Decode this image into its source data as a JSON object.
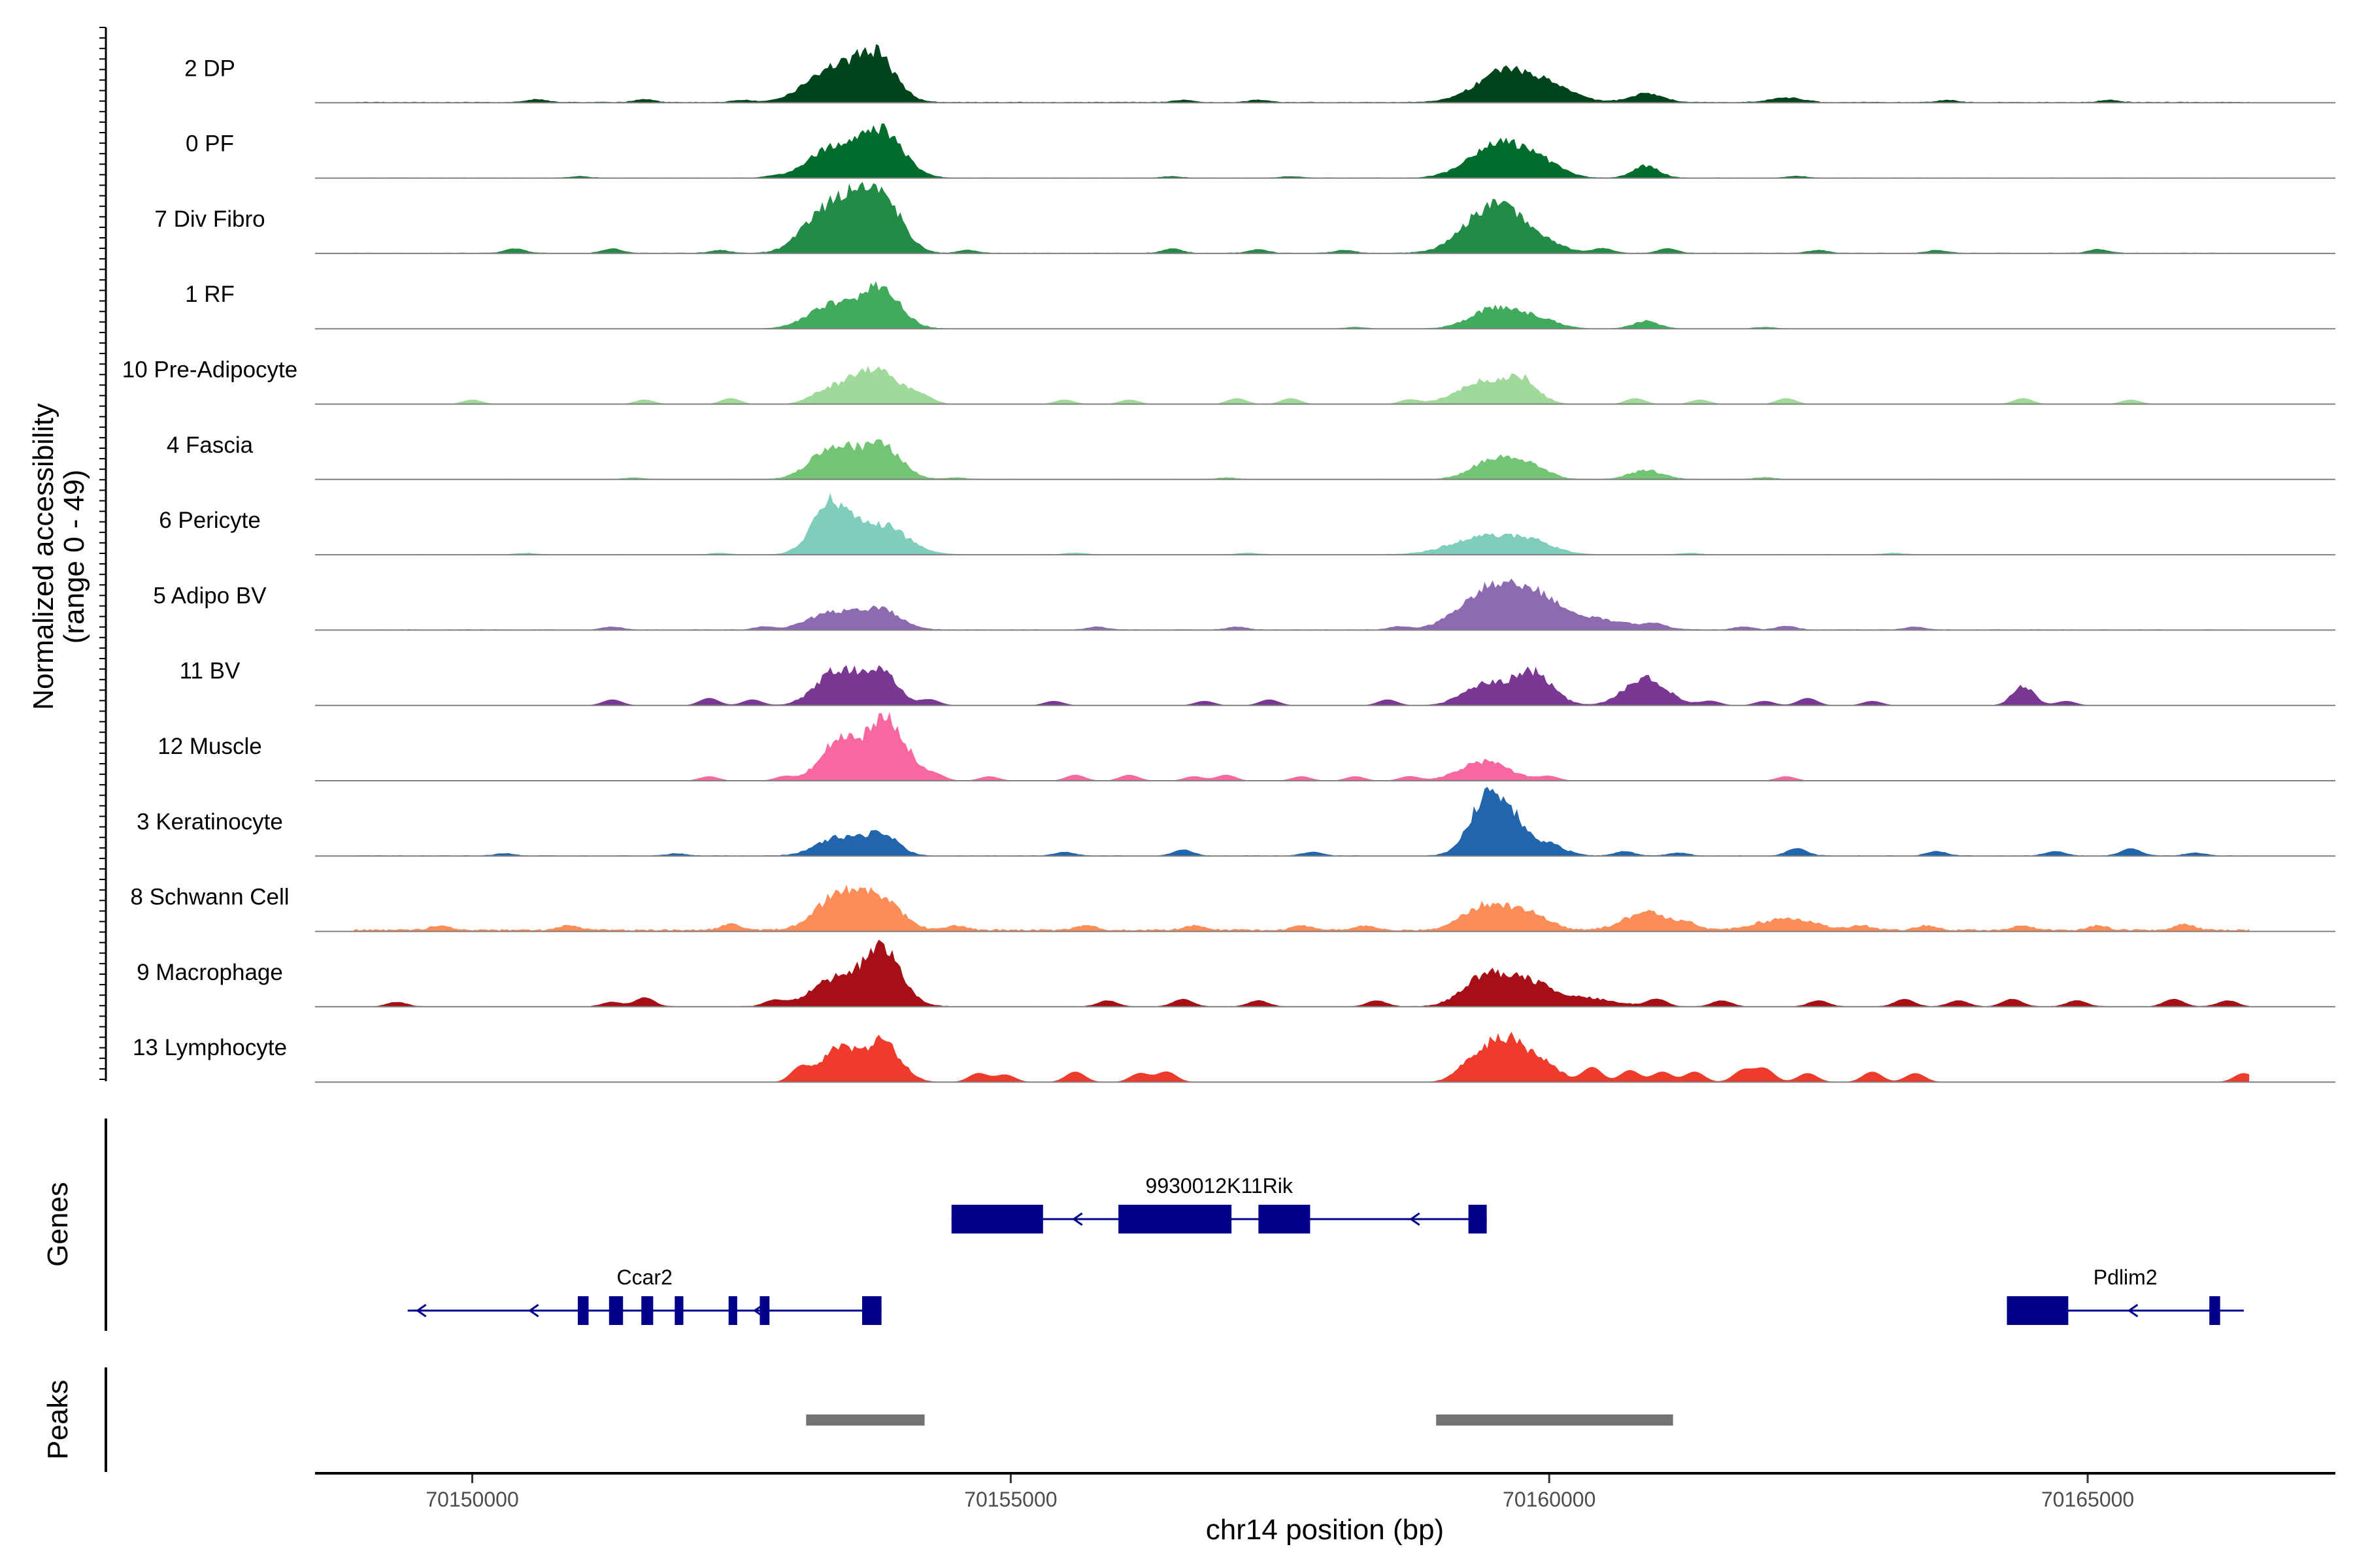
{
  "chart_data": {
    "type": "area",
    "title": "",
    "ylabel_line1": "Normalized accessibility",
    "ylabel_line2": "(range 0 - 49)",
    "xlabel": "chr14 position (bp)",
    "xlim": [
      70148540,
      70167300
    ],
    "ylim": [
      0,
      49
    ],
    "x_ticks": [
      {
        "value": 70150000,
        "label": "70150000"
      },
      {
        "value": 70155000,
        "label": "70155000"
      },
      {
        "value": 70160000,
        "label": "70160000"
      },
      {
        "value": 70165000,
        "label": "70165000"
      }
    ],
    "genes_label": "Genes",
    "peaks_label": "Peaks",
    "series": [
      {
        "name": "2 DP",
        "color": "#00441b",
        "baseline": 0.5,
        "range": [
          70148900,
          70166500
        ],
        "peaks": [
          [
            70153350,
            250,
            22
          ],
          [
            70153750,
            180,
            28
          ],
          [
            70159550,
            250,
            18
          ],
          [
            70159950,
            250,
            11
          ],
          [
            70160900,
            150,
            6
          ],
          [
            70162200,
            150,
            3
          ]
        ],
        "bumps": [
          [
            70150600,
            2
          ],
          [
            70151600,
            2
          ],
          [
            70152500,
            1.5
          ],
          [
            70156600,
            1.5
          ],
          [
            70157300,
            1.5
          ],
          [
            70163700,
            1.5
          ],
          [
            70165200,
            1.5
          ]
        ]
      },
      {
        "name": "0 PF",
        "color": "#006d2c",
        "baseline": 0.3,
        "range": [
          70148900,
          70166500
        ],
        "peaks": [
          [
            70153350,
            220,
            20
          ],
          [
            70153800,
            200,
            30
          ],
          [
            70159500,
            250,
            22
          ],
          [
            70159900,
            200,
            10
          ],
          [
            70160900,
            120,
            8
          ]
        ],
        "bumps": [
          [
            70151000,
            1
          ],
          [
            70152800,
            1
          ],
          [
            70156500,
            1
          ],
          [
            70157600,
            1
          ],
          [
            70162300,
            1.2
          ]
        ]
      },
      {
        "name": "7 Div Fibro",
        "color": "#238b45",
        "baseline": 0.4,
        "range": [
          70148900,
          70166500
        ],
        "peaks": [
          [
            70153250,
            200,
            25
          ],
          [
            70153500,
            150,
            20
          ],
          [
            70153800,
            180,
            38
          ],
          [
            70159450,
            250,
            28
          ],
          [
            70159800,
            250,
            10
          ]
        ],
        "bumps": [
          [
            70150400,
            3
          ],
          [
            70151300,
            3
          ],
          [
            70152300,
            2
          ],
          [
            70154600,
            2
          ],
          [
            70156500,
            3
          ],
          [
            70157300,
            2.5
          ],
          [
            70158100,
            2
          ],
          [
            70160500,
            3
          ],
          [
            70161100,
            3
          ],
          [
            70162500,
            2
          ],
          [
            70163600,
            2
          ],
          [
            70165100,
            2.5
          ]
        ]
      },
      {
        "name": "1 RF",
        "color": "#41ab5d",
        "baseline": 0.2,
        "range": [
          70148900,
          70166500
        ],
        "peaks": [
          [
            70153350,
            220,
            16
          ],
          [
            70153800,
            180,
            26
          ],
          [
            70159500,
            220,
            14
          ],
          [
            70159900,
            180,
            6
          ],
          [
            70160900,
            120,
            5
          ]
        ],
        "bumps": [
          [
            70158200,
            1
          ],
          [
            70162000,
            1
          ]
        ]
      },
      {
        "name": "10 Pre-Adipocyte",
        "color": "#a1d99b",
        "baseline": 0,
        "range": [
          70148900,
          70166500
        ],
        "peaks": [
          [
            70153300,
            150,
            10
          ],
          [
            70153600,
            120,
            8
          ],
          [
            70153800,
            220,
            20
          ],
          [
            70159400,
            250,
            15
          ],
          [
            70159750,
            150,
            13
          ]
        ],
        "bumps": [
          [
            70150000,
            3
          ],
          [
            70151600,
            3
          ],
          [
            70152400,
            4
          ],
          [
            70154200,
            3
          ],
          [
            70155500,
            3
          ],
          [
            70156100,
            3
          ],
          [
            70157100,
            4
          ],
          [
            70157600,
            4
          ],
          [
            70158700,
            3
          ],
          [
            70160800,
            4
          ],
          [
            70161400,
            3
          ],
          [
            70162200,
            4
          ],
          [
            70164400,
            4
          ],
          [
            70165400,
            3
          ]
        ]
      },
      {
        "name": "4 Fascia",
        "color": "#74c476",
        "baseline": 0.3,
        "range": [
          70148900,
          70166500
        ],
        "peaks": [
          [
            70153350,
            200,
            22
          ],
          [
            70153800,
            180,
            22
          ],
          [
            70159500,
            200,
            14
          ],
          [
            70159850,
            150,
            8
          ],
          [
            70160900,
            150,
            6
          ]
        ],
        "bumps": [
          [
            70151500,
            1
          ],
          [
            70154500,
            1
          ],
          [
            70157000,
            1
          ],
          [
            70162000,
            1.2
          ]
        ]
      },
      {
        "name": "6 Pericyte",
        "color": "#7fcdbb",
        "baseline": 0.3,
        "range": [
          70148900,
          70166500
        ],
        "peaks": [
          [
            70153330,
            170,
            34
          ],
          [
            70153800,
            230,
            20
          ],
          [
            70159400,
            300,
            12
          ],
          [
            70159850,
            200,
            7
          ]
        ],
        "bumps": [
          [
            70150500,
            1
          ],
          [
            70152300,
            1
          ],
          [
            70155600,
            1
          ],
          [
            70157200,
            1
          ],
          [
            70161300,
            1
          ],
          [
            70163200,
            1
          ]
        ]
      },
      {
        "name": "5 Adipo BV",
        "color": "#8c6bb1",
        "baseline": 0.4,
        "range": [
          70148900,
          70166500
        ],
        "peaks": [
          [
            70153350,
            220,
            12
          ],
          [
            70153800,
            180,
            13
          ],
          [
            70159450,
            270,
            27
          ],
          [
            70159900,
            250,
            18
          ],
          [
            70160500,
            300,
            6
          ]
        ],
        "bumps": [
          [
            70151300,
            2
          ],
          [
            70152700,
            2
          ],
          [
            70155800,
            2
          ],
          [
            70157100,
            2
          ],
          [
            70158600,
            2
          ],
          [
            70161000,
            3
          ],
          [
            70161800,
            2
          ],
          [
            70162200,
            2.5
          ],
          [
            70163400,
            2
          ]
        ]
      },
      {
        "name": "11 BV",
        "color": "#7a3793",
        "baseline": 0,
        "range": [
          70148900,
          70166500
        ],
        "peaks": [
          [
            70153400,
            200,
            24
          ],
          [
            70153800,
            150,
            22
          ],
          [
            70159400,
            200,
            14
          ],
          [
            70159850,
            180,
            22
          ],
          [
            70160900,
            200,
            18
          ],
          [
            70164400,
            100,
            13
          ]
        ],
        "bumps": [
          [
            70151300,
            4
          ],
          [
            70152200,
            5
          ],
          [
            70152600,
            4
          ],
          [
            70154250,
            4
          ],
          [
            70155400,
            3
          ],
          [
            70156800,
            3
          ],
          [
            70157400,
            4
          ],
          [
            70158500,
            4
          ],
          [
            70161500,
            3
          ],
          [
            70162000,
            3
          ],
          [
            70162400,
            5
          ],
          [
            70163000,
            3
          ],
          [
            70164800,
            3
          ]
        ]
      },
      {
        "name": "12 Muscle",
        "color": "#f768a1",
        "baseline": 0,
        "range": [
          70148900,
          70166500
        ],
        "peaks": [
          [
            70153400,
            170,
            26
          ],
          [
            70153850,
            180,
            42
          ],
          [
            70159400,
            230,
            13
          ]
        ],
        "bumps": [
          [
            70152200,
            3
          ],
          [
            70152900,
            3
          ],
          [
            70154300,
            4
          ],
          [
            70154800,
            3
          ],
          [
            70155600,
            4
          ],
          [
            70156100,
            4
          ],
          [
            70156700,
            3
          ],
          [
            70157000,
            4
          ],
          [
            70157700,
            3
          ],
          [
            70158200,
            3
          ],
          [
            70158700,
            3
          ],
          [
            70160000,
            3
          ],
          [
            70162200,
            3
          ]
        ]
      },
      {
        "name": "3 Keratinocyte",
        "color": "#2166ac",
        "baseline": 0.4,
        "range": [
          70148900,
          70166500
        ],
        "peaks": [
          [
            70153400,
            200,
            12
          ],
          [
            70153800,
            150,
            14
          ],
          [
            70159350,
            150,
            16
          ],
          [
            70159550,
            180,
            36
          ],
          [
            70160000,
            150,
            7
          ]
        ],
        "bumps": [
          [
            70150300,
            1.5
          ],
          [
            70151900,
            1.5
          ],
          [
            70155500,
            2.5
          ],
          [
            70156600,
            4
          ],
          [
            70157800,
            2.5
          ],
          [
            70160700,
            3
          ],
          [
            70161200,
            2
          ],
          [
            70162300,
            5
          ],
          [
            70163600,
            3
          ],
          [
            70164700,
            3
          ],
          [
            70165400,
            5
          ],
          [
            70166000,
            2
          ]
        ]
      },
      {
        "name": "8 Schwann Cell",
        "color": "#fc8d59",
        "baseline": 1.2,
        "range": [
          70148900,
          70166500
        ],
        "peaks": [
          [
            70153400,
            200,
            24
          ],
          [
            70153800,
            180,
            20
          ],
          [
            70159400,
            200,
            16
          ],
          [
            70159800,
            180,
            12
          ],
          [
            70160900,
            200,
            12
          ],
          [
            70162200,
            250,
            8
          ]
        ],
        "bumps": [
          [
            70149700,
            3
          ],
          [
            70150900,
            3
          ],
          [
            70152400,
            4
          ],
          [
            70154500,
            3
          ],
          [
            70155700,
            3
          ],
          [
            70156700,
            3
          ],
          [
            70157700,
            3
          ],
          [
            70158300,
            3
          ],
          [
            70161300,
            4
          ],
          [
            70162900,
            3
          ],
          [
            70163500,
            3
          ],
          [
            70164400,
            3
          ],
          [
            70165100,
            3
          ],
          [
            70165900,
            4
          ]
        ]
      },
      {
        "name": "9 Macrophage",
        "color": "#a50f15",
        "baseline": 0.3,
        "range": [
          70148900,
          70166500
        ],
        "peaks": [
          [
            70153300,
            200,
            13
          ],
          [
            70153700,
            230,
            20
          ],
          [
            70153850,
            150,
            22
          ],
          [
            70159400,
            200,
            20
          ],
          [
            70159800,
            200,
            15
          ],
          [
            70160300,
            280,
            6
          ]
        ],
        "bumps": [
          [
            70149300,
            3
          ],
          [
            70151300,
            3
          ],
          [
            70151600,
            6
          ],
          [
            70152800,
            4
          ],
          [
            70155900,
            4
          ],
          [
            70156600,
            5
          ],
          [
            70157300,
            4
          ],
          [
            70158400,
            4
          ],
          [
            70161000,
            5
          ],
          [
            70161600,
            4
          ],
          [
            70162500,
            4
          ],
          [
            70163300,
            5
          ],
          [
            70163800,
            4
          ],
          [
            70164300,
            5
          ],
          [
            70164900,
            4
          ],
          [
            70165800,
            5
          ],
          [
            70166300,
            4
          ]
        ]
      },
      {
        "name": "13 Lymphocyte",
        "color": "#ee3b2b",
        "baseline": 0,
        "range": [
          70148900,
          70166500
        ],
        "peaks": [
          [
            70153400,
            150,
            22
          ],
          [
            70153800,
            170,
            27
          ],
          [
            70159300,
            150,
            12
          ],
          [
            70159600,
            180,
            28
          ],
          [
            70159950,
            150,
            12
          ]
        ],
        "bumps": [
          [
            70153050,
            10
          ],
          [
            70154700,
            6
          ],
          [
            70154950,
            5
          ],
          [
            70155600,
            7
          ],
          [
            70156200,
            6
          ],
          [
            70156450,
            7
          ],
          [
            70160400,
            10
          ],
          [
            70160750,
            8
          ],
          [
            70161050,
            7
          ],
          [
            70161350,
            7
          ],
          [
            70161800,
            8
          ],
          [
            70162000,
            9
          ],
          [
            70162400,
            6
          ],
          [
            70163000,
            7
          ],
          [
            70163400,
            6
          ],
          [
            70166450,
            6
          ]
        ]
      }
    ],
    "genes": [
      {
        "name": "9930012K11Rik",
        "row": 1,
        "start": 70154450,
        "end": 70159420,
        "strand": "-",
        "exons": [
          [
            70154450,
            70155300
          ],
          [
            70156000,
            70157050
          ],
          [
            70157300,
            70157780
          ],
          [
            70159250,
            70159420
          ]
        ]
      },
      {
        "name": "Ccar2",
        "row": 2,
        "start": 70149400,
        "end": 70153800,
        "strand": "-",
        "exons": [
          [
            70150980,
            70151080
          ],
          [
            70151270,
            70151400
          ],
          [
            70151570,
            70151680
          ],
          [
            70151880,
            70151960
          ],
          [
            70152380,
            70152460
          ],
          [
            70152670,
            70152760
          ],
          [
            70153620,
            70153800
          ]
        ]
      },
      {
        "name": "Pdlim2",
        "row": 2,
        "start": 70164250,
        "end": 70166450,
        "strand": "-",
        "exons": [
          [
            70164250,
            70164820
          ],
          [
            70166130,
            70166230
          ]
        ]
      }
    ],
    "peaks_regions": [
      [
        70153100,
        70154200
      ],
      [
        70158950,
        70161150
      ]
    ]
  }
}
